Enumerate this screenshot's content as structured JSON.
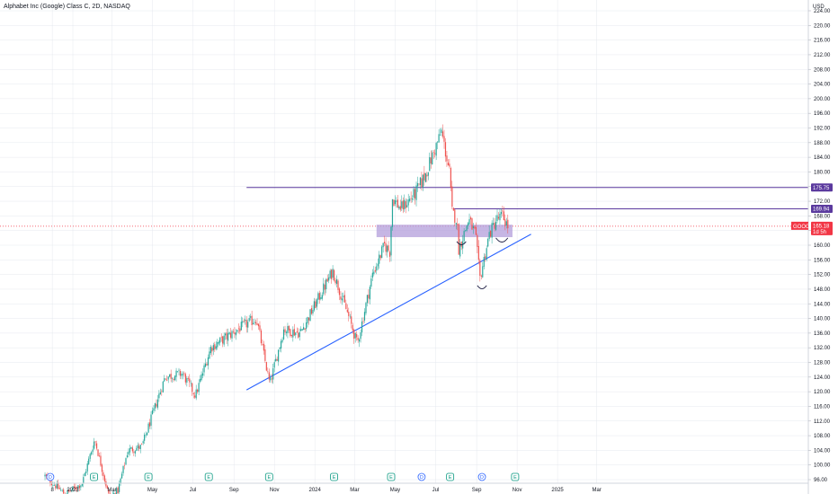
{
  "header": {
    "title": "Alphabet Inc (Google) Class C, 2D, NASDAQ",
    "currency": "USD"
  },
  "colors": {
    "up": "#26a69a",
    "down": "#ef5350",
    "trendline": "#2962ff",
    "resistance": "#5b3a9e",
    "zone": "#b39ddb",
    "price_tag": "#f23645",
    "grid": "#e0e3eb",
    "earnings": "#089981",
    "dividend": "#2962ff",
    "split": "#9c27b0"
  },
  "chart_data": {
    "type": "candlestick",
    "symbol": "GOOG",
    "timeframe": "2D",
    "yaxis": {
      "min": 96,
      "max": 224,
      "step": 4,
      "ticks": [
        "96.00",
        "100.00",
        "104.00",
        "108.00",
        "112.00",
        "116.00",
        "120.00",
        "124.00",
        "128.00",
        "132.00",
        "136.00",
        "140.00",
        "144.00",
        "148.00",
        "152.00",
        "156.00",
        "160.00",
        "164.00",
        "168.00",
        "172.00",
        "176.00",
        "180.00",
        "184.00",
        "188.00",
        "192.00",
        "196.00",
        "200.00",
        "204.00",
        "208.00",
        "212.00",
        "216.00",
        "220.00",
        "224.00"
      ]
    },
    "xaxis": {
      "ticks": [
        {
          "label": "8",
          "date": "2022-12-01"
        },
        {
          "label": "2023",
          "date": "2023-01-01"
        },
        {
          "label": "Mar",
          "date": "2023-03-01"
        },
        {
          "label": "May",
          "date": "2023-05-01"
        },
        {
          "label": "Jul",
          "date": "2023-07-01"
        },
        {
          "label": "Sep",
          "date": "2023-09-01"
        },
        {
          "label": "Nov",
          "date": "2023-11-01"
        },
        {
          "label": "2024",
          "date": "2024-01-01"
        },
        {
          "label": "Mar",
          "date": "2024-03-01"
        },
        {
          "label": "May",
          "date": "2024-05-01"
        },
        {
          "label": "Jul",
          "date": "2024-07-01"
        },
        {
          "label": "Sep",
          "date": "2024-09-01"
        },
        {
          "label": "Nov",
          "date": "2024-11-01"
        },
        {
          "label": "2025",
          "date": "2025-01-01"
        },
        {
          "label": "Mar",
          "date": "2025-03-01"
        }
      ]
    },
    "price_path": [
      [
        "2022-11-20",
        97
      ],
      [
        "2022-12-20",
        92
      ],
      [
        "2023-01-15",
        95
      ],
      [
        "2023-02-03",
        107
      ],
      [
        "2023-02-25",
        91
      ],
      [
        "2023-03-10",
        93
      ],
      [
        "2023-03-25",
        104
      ],
      [
        "2023-04-15",
        105
      ],
      [
        "2023-05-20",
        124
      ],
      [
        "2023-06-15",
        125
      ],
      [
        "2023-07-05",
        119
      ],
      [
        "2023-07-28",
        132
      ],
      [
        "2023-09-15",
        138
      ],
      [
        "2023-10-05",
        140
      ],
      [
        "2023-10-25",
        122
      ],
      [
        "2023-11-15",
        137
      ],
      [
        "2023-12-10",
        136
      ],
      [
        "2024-01-28",
        153
      ],
      [
        "2024-02-20",
        141
      ],
      [
        "2024-03-05",
        133
      ],
      [
        "2024-03-28",
        152
      ],
      [
        "2024-04-15",
        160
      ],
      [
        "2024-04-24",
        158
      ],
      [
        "2024-04-26",
        173
      ],
      [
        "2024-05-10",
        170
      ],
      [
        "2024-05-31",
        174
      ],
      [
        "2024-06-15",
        179
      ],
      [
        "2024-07-10",
        191
      ],
      [
        "2024-07-22",
        180
      ],
      [
        "2024-07-26",
        169
      ],
      [
        "2024-08-02",
        167
      ],
      [
        "2024-08-05",
        159
      ],
      [
        "2024-08-20",
        167
      ],
      [
        "2024-08-30",
        163
      ],
      [
        "2024-09-06",
        151
      ],
      [
        "2024-09-20",
        163
      ],
      [
        "2024-10-01",
        167
      ],
      [
        "2024-10-10",
        168
      ],
      [
        "2024-10-18",
        165.18
      ]
    ],
    "last_price": {
      "label": "GOOG",
      "value": "165.18",
      "countdown": "1d 5h"
    },
    "horizontal_levels": [
      {
        "label": "175.75",
        "value": 175.75,
        "start": "2023-09-20"
      },
      {
        "label": "169.94",
        "value": 169.94,
        "start": "2024-07-28"
      }
    ],
    "support_zone": {
      "from": 162.2,
      "to": 165.6,
      "start": "2024-04-03",
      "end": "2024-10-25"
    },
    "trendline": {
      "points": [
        [
          "2023-09-20",
          120.5
        ],
        [
          "2024-11-22",
          163
        ]
      ]
    },
    "arcs": [
      {
        "start": "2024-08-02",
        "end": "2024-08-16",
        "y": 161
      },
      {
        "start": "2024-09-02",
        "end": "2024-09-16",
        "y": 149
      },
      {
        "start": "2024-09-30",
        "end": "2024-10-18",
        "y": 162
      }
    ],
    "events": [
      {
        "kind": "dividend",
        "text": "D",
        "date": "2022-11-28"
      },
      {
        "kind": "earnings",
        "text": "E",
        "date": "2023-02-02"
      },
      {
        "kind": "earnings",
        "text": "E",
        "date": "2023-04-25"
      },
      {
        "kind": "earnings",
        "text": "E",
        "date": "2023-07-25"
      },
      {
        "kind": "earnings",
        "text": "E",
        "date": "2023-10-24"
      },
      {
        "kind": "earnings",
        "text": "E",
        "date": "2024-01-30"
      },
      {
        "kind": "earnings",
        "text": "E",
        "date": "2024-04-25"
      },
      {
        "kind": "dividend",
        "text": "D",
        "date": "2024-06-10"
      },
      {
        "kind": "earnings",
        "text": "E",
        "date": "2024-07-23"
      },
      {
        "kind": "dividend",
        "text": "D",
        "date": "2024-09-09"
      },
      {
        "kind": "earnings",
        "text": "E",
        "date": "2024-10-29"
      }
    ]
  }
}
